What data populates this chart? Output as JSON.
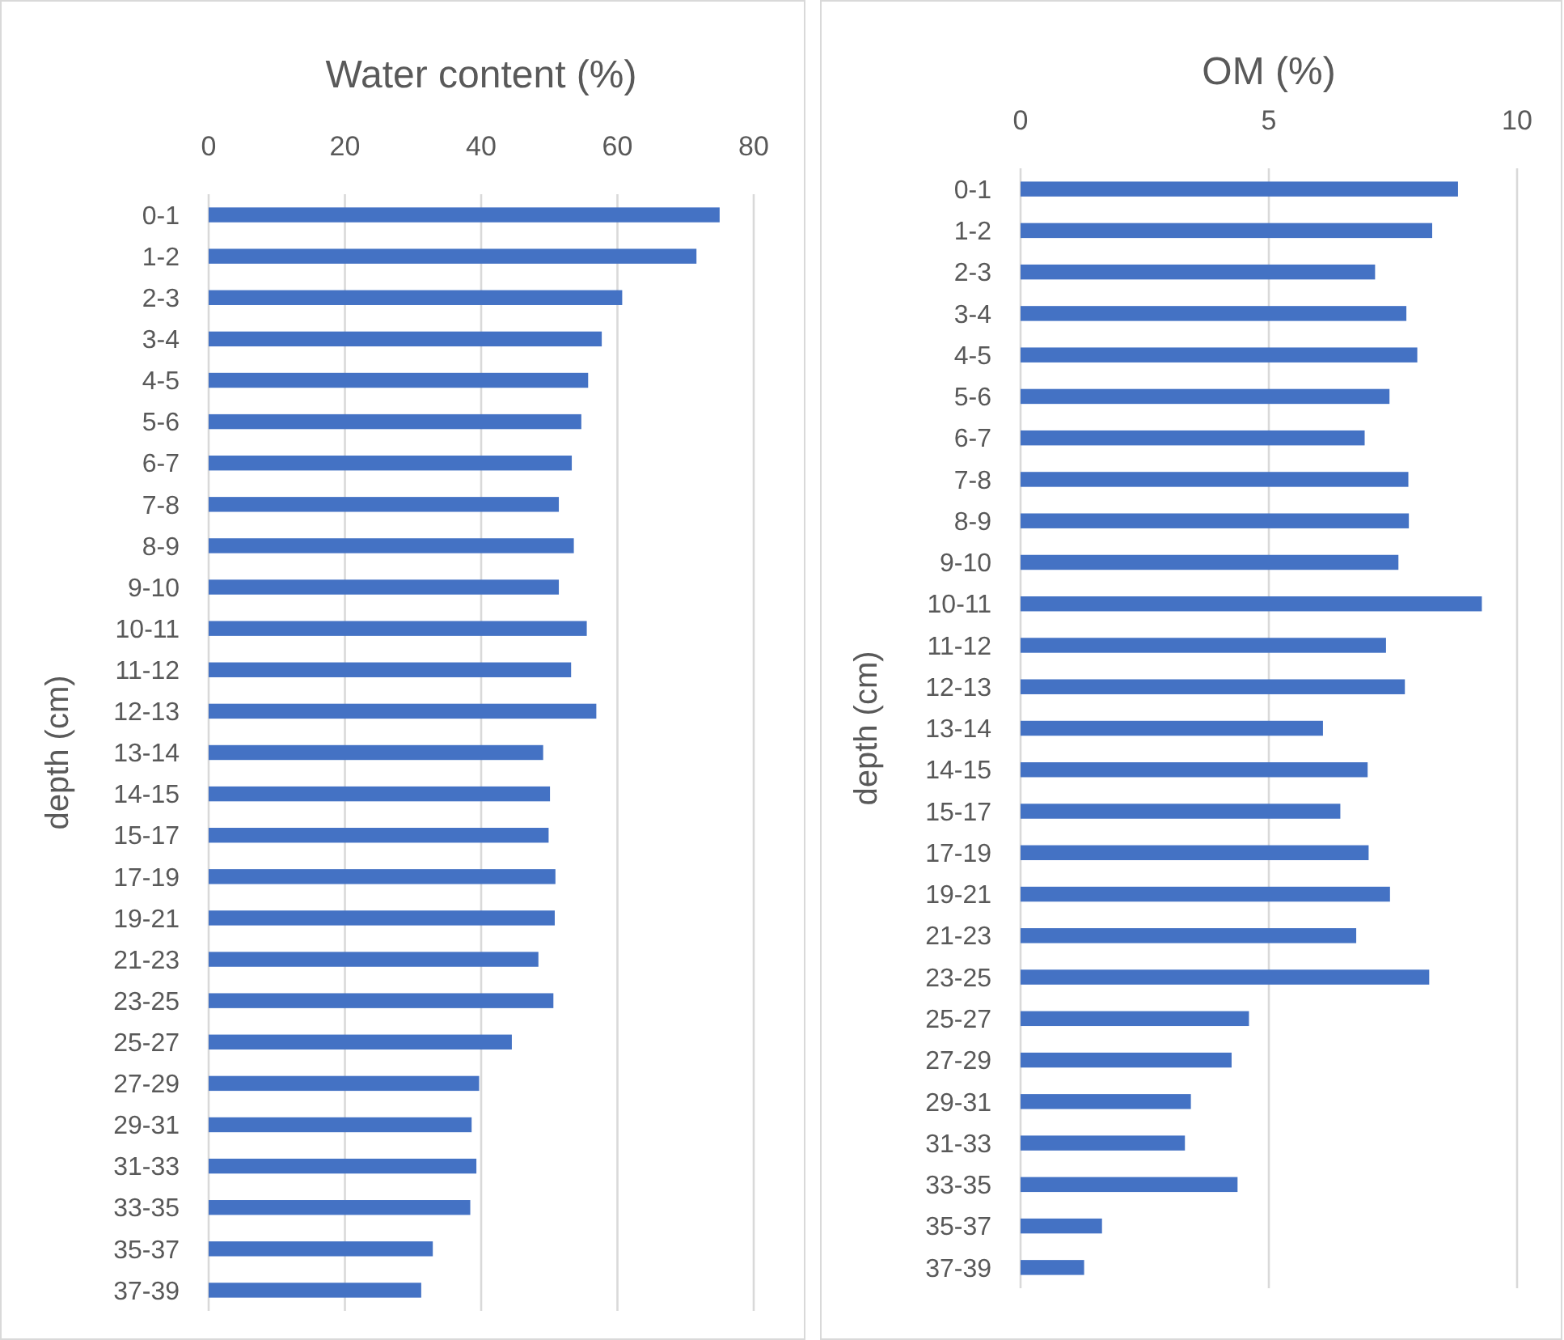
{
  "chart_data": [
    {
      "type": "bar",
      "orientation": "horizontal",
      "title": "Water content (%)",
      "ylabel": "depth (cm)",
      "categories": [
        "0-1",
        "1-2",
        "2-3",
        "3-4",
        "4-5",
        "5-6",
        "6-7",
        "7-8",
        "8-9",
        "9-10",
        "10-11",
        "11-12",
        "12-13",
        "13-14",
        "14-15",
        "15-17",
        "17-19",
        "19-21",
        "21-23",
        "23-25",
        "25-27",
        "27-29",
        "29-31",
        "31-33",
        "33-35",
        "35-37",
        "37-39"
      ],
      "values": [
        75.0,
        71.6,
        60.7,
        57.7,
        55.7,
        54.7,
        53.3,
        51.4,
        53.6,
        51.4,
        55.5,
        53.2,
        56.9,
        49.1,
        50.1,
        49.9,
        50.9,
        50.8,
        48.4,
        50.6,
        44.5,
        39.7,
        38.6,
        39.3,
        38.4,
        32.9,
        31.2
      ],
      "color": "#4472c4",
      "xlim": [
        0,
        80
      ],
      "xticks": [
        0,
        20,
        40,
        60,
        80
      ],
      "grid": "x"
    },
    {
      "type": "bar",
      "orientation": "horizontal",
      "title": "OM (%)",
      "ylabel": "depth (cm)",
      "categories": [
        "0-1",
        "1-2",
        "2-3",
        "3-4",
        "4-5",
        "5-6",
        "6-7",
        "7-8",
        "8-9",
        "9-10",
        "10-11",
        "11-12",
        "12-13",
        "13-14",
        "14-15",
        "15-17",
        "17-19",
        "19-21",
        "21-23",
        "23-25",
        "25-27",
        "27-29",
        "29-31",
        "31-33",
        "33-35",
        "35-37",
        "37-39"
      ],
      "values": [
        8.81,
        8.29,
        7.14,
        7.77,
        7.99,
        7.43,
        6.93,
        7.81,
        7.82,
        7.61,
        9.29,
        7.36,
        7.74,
        6.09,
        6.99,
        6.44,
        7.01,
        7.44,
        6.76,
        8.23,
        4.6,
        4.25,
        3.43,
        3.31,
        4.37,
        1.64,
        1.28
      ],
      "color": "#4472c4",
      "xlim": [
        0,
        10
      ],
      "xticks": [
        0,
        5,
        10
      ],
      "grid": "x"
    }
  ]
}
